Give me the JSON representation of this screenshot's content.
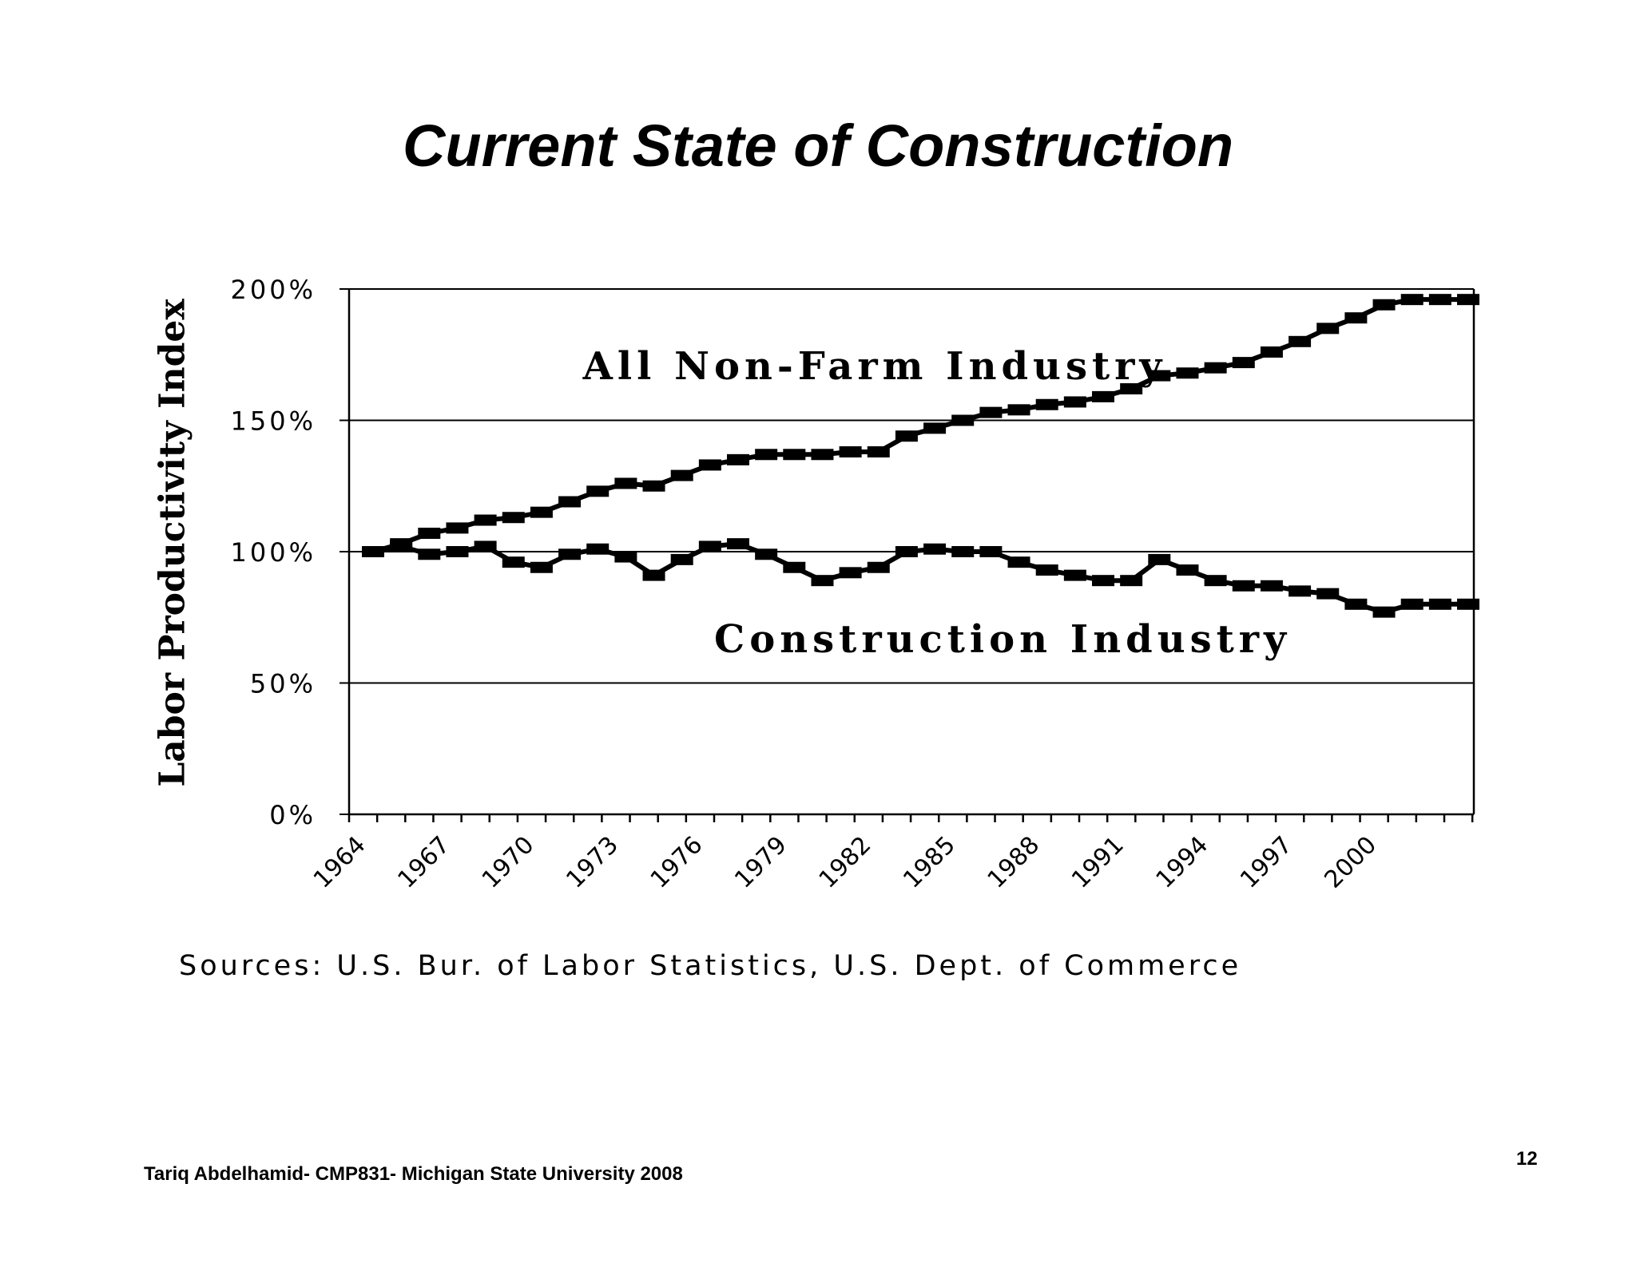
{
  "slide": {
    "title": "Current State of Construction",
    "sources": "Sources: U.S. Bur. of Labor Statistics, U.S. Dept. of Commerce",
    "footer": "Tariq Abdelhamid- CMP831- Michigan State University 2008",
    "page_number": "12"
  },
  "chart_data": {
    "type": "line",
    "title": "",
    "xlabel": "",
    "ylabel": "Labor Productivity Index",
    "x": [
      1964,
      1965,
      1966,
      1967,
      1968,
      1969,
      1970,
      1971,
      1972,
      1973,
      1974,
      1975,
      1976,
      1977,
      1978,
      1979,
      1980,
      1981,
      1982,
      1983,
      1984,
      1985,
      1986,
      1987,
      1988,
      1989,
      1990,
      1991,
      1992,
      1993,
      1994,
      1995,
      1996,
      1997,
      1998,
      1999,
      2000,
      2001,
      2002,
      2003
    ],
    "x_tick_labels": [
      "1964",
      "1967",
      "1970",
      "1973",
      "1976",
      "1979",
      "1982",
      "1985",
      "1988",
      "1991",
      "1994",
      "1997",
      "2000"
    ],
    "y_tick_labels": [
      "0%",
      "50%",
      "100%",
      "150%",
      "200%"
    ],
    "ylim": [
      0,
      200
    ],
    "grid": "horizontal",
    "legend": "none",
    "series": [
      {
        "name": "All Non-Farm Industry",
        "values": [
          100,
          103,
          107,
          109,
          112,
          113,
          115,
          119,
          123,
          126,
          125,
          129,
          133,
          135,
          137,
          137,
          137,
          138,
          138,
          144,
          147,
          150,
          153,
          154,
          156,
          157,
          159,
          162,
          167,
          168,
          170,
          172,
          176,
          180,
          185,
          189,
          194,
          196,
          196,
          196
        ]
      },
      {
        "name": "Construction Industry",
        "values": [
          100,
          102,
          99,
          100,
          102,
          96,
          94,
          99,
          101,
          98,
          91,
          97,
          102,
          103,
          99,
          94,
          89,
          92,
          94,
          100,
          101,
          100,
          100,
          96,
          93,
          91,
          89,
          89,
          97,
          93,
          89,
          87,
          87,
          85,
          84,
          80,
          77,
          80,
          80,
          80
        ]
      }
    ],
    "series_label_positions": [
      "above-middle",
      "below-middle"
    ],
    "line_color": "#000000",
    "marker": "square"
  }
}
